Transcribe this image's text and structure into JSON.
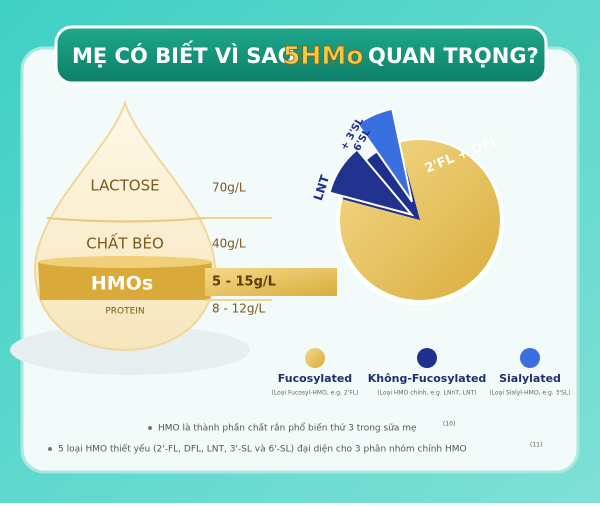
{
  "header": {
    "title_before": "MẸ CÓ BIẾT VÌ SAO",
    "title_highlight": "5HMo",
    "title_after": "QUAN TRỌNG?"
  },
  "drop": {
    "layers": [
      {
        "label": "LACTOSE",
        "amount": "70g/L"
      },
      {
        "label": "CHẤT BÉO",
        "amount": "40g/L"
      },
      {
        "label": "HMOs",
        "amount": "5 - 15g/L"
      },
      {
        "label": "PROTEIN",
        "amount": "8 - 12g/L"
      }
    ]
  },
  "pie": {
    "slices": [
      "2'FL + DFL",
      "LNT",
      "+ 3'SL",
      "6'SL"
    ]
  },
  "legend": [
    {
      "name": "Fucosylated",
      "note": "(Loại Fucosyl-HMO, e.g. 2'FL)"
    },
    {
      "name": "Không-Fucosylated",
      "note": "(Loại HMO chính, e.g. LNnT, LNT)"
    },
    {
      "name": "Sialylated",
      "note": "(Loại Sialyl-HMO, e.g. 3'SL)"
    }
  ],
  "notes": [
    {
      "text": "HMO là thành phần chất rắn phổ biến thứ 3 trong sữa mẹ",
      "ref": "(10)"
    },
    {
      "text": "5 loại HMO thiết yếu (2'-FL, DFL, LNT, 3'-SL và 6'-SL) đại diện cho 3 phân nhóm chính HMO",
      "ref": "(11)"
    }
  ]
}
